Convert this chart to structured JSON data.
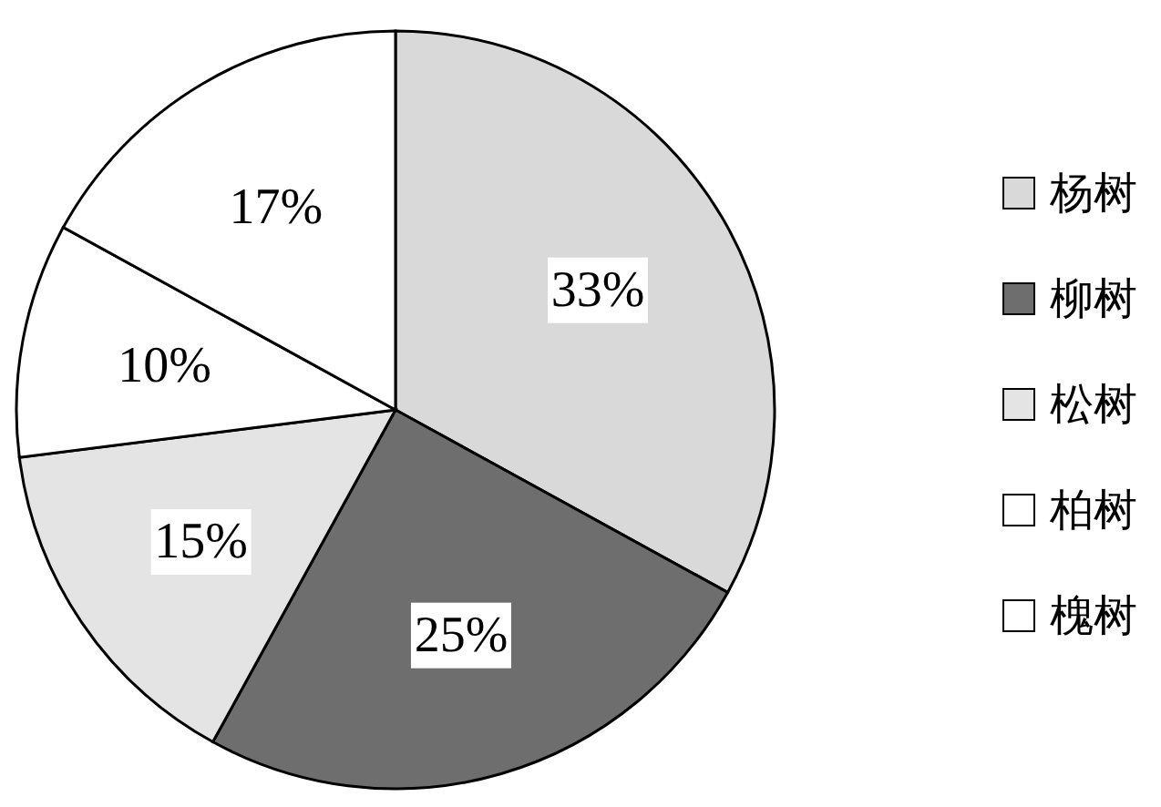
{
  "chart_data": {
    "type": "pie",
    "categories": [
      "杨树",
      "柳树",
      "松树",
      "柏树",
      "槐树"
    ],
    "values": [
      33,
      25,
      15,
      10,
      17
    ],
    "colors": [
      "#d9d9d9",
      "#6e6e6e",
      "#e4e4e4",
      "#ffffff",
      "#ffffff"
    ],
    "value_labels": [
      "33%",
      "25%",
      "15%",
      "10%",
      "17%"
    ],
    "legend": "right"
  }
}
